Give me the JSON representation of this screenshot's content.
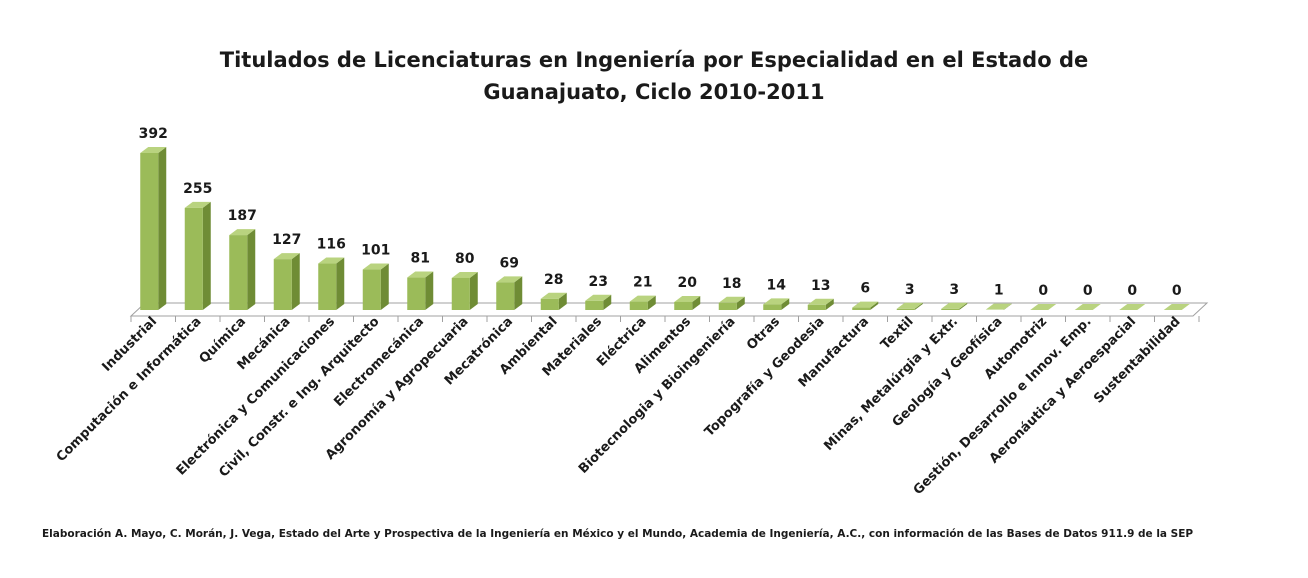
{
  "chart_data": {
    "type": "bar",
    "title_line1": "Titulados de Licenciaturas en Ingeniería por Especialidad en el Estado de",
    "title_line2": "Guanajuato, Ciclo 2010-2011",
    "xlabel": "",
    "ylabel": "",
    "ylim": [
      0,
      400
    ],
    "grid": false,
    "legend": "none",
    "categories": [
      "Industrial",
      "Computación e Informática",
      "Química",
      "Mecánica",
      "Electrónica y Comunicaciones",
      "Civil, Constr. e Ing. Arquitecto",
      "Electromecánica",
      "Agronomía y Agropecuaria",
      "Mecatrónica",
      "Ambiental",
      "Materiales",
      "Eléctrica",
      "Alimentos",
      "Biotecnologia y Bioingeniería",
      "Otras",
      "Topografía y Geodesia",
      "Manufactura",
      "Textil",
      "Minas, Metalúrgia y Extr.",
      "Geología y Geofísica",
      "Automotriz",
      "Gestión, Desarrollo e Innov. Emp.",
      "Aeronáutica y Aeroespacial",
      "Sustentabilidad"
    ],
    "values": [
      392,
      255,
      187,
      127,
      116,
      101,
      81,
      80,
      69,
      28,
      23,
      21,
      20,
      18,
      14,
      13,
      6,
      3,
      3,
      1,
      0,
      0,
      0,
      0
    ],
    "colors": {
      "bar_front": "#9bbb59",
      "bar_side": "#6f8c35",
      "bar_top": "#b9d37f",
      "floor": "#ffffff",
      "floor_stroke": "#a0a0a0"
    }
  },
  "source_note": "Elaboración A. Mayo, C. Morán, J. Vega, Estado del Arte y Prospectiva de la Ingeniería en México y el Mundo, Academia de Ingeniería, A.C., con información de las Bases de Datos  911.9  de la SEP"
}
